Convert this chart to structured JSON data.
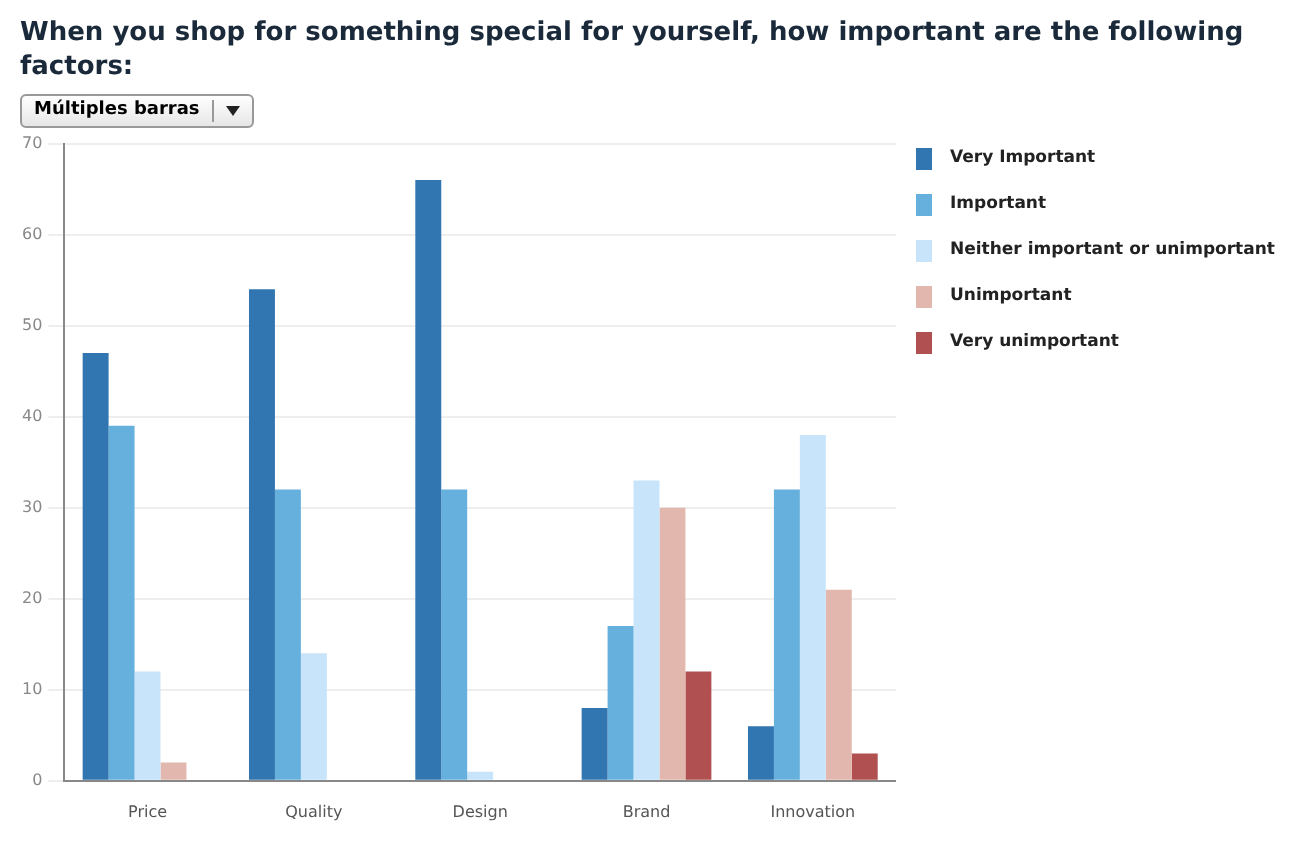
{
  "chart_data": {
    "type": "bar",
    "title": "When you shop for something special for yourself, how important are the following factors:",
    "annotations": [
      "Múltiples barras"
    ],
    "categories": [
      "Price",
      "Quality",
      "Design",
      "Brand",
      "Innovation"
    ],
    "series": [
      {
        "name": "Very Important",
        "color": "#3176b0",
        "values": [
          47,
          54,
          66,
          8,
          6
        ]
      },
      {
        "name": "Important",
        "color": "#66b0de",
        "values": [
          39,
          32,
          32,
          17,
          32
        ]
      },
      {
        "name": "Neither important or unimportant",
        "color": "#c8e4fb",
        "values": [
          12,
          14,
          1,
          33,
          38
        ]
      },
      {
        "name": "Unimportant",
        "color": "#e2b8ae",
        "values": [
          2,
          0,
          0,
          30,
          21
        ]
      },
      {
        "name": "Very unimportant",
        "color": "#b05050",
        "values": [
          0,
          0,
          0,
          12,
          3
        ]
      }
    ],
    "ylim": [
      0,
      70
    ],
    "yticks": [
      0,
      10,
      20,
      30,
      40,
      50,
      60,
      70
    ],
    "grid": "y",
    "legend": "right"
  }
}
